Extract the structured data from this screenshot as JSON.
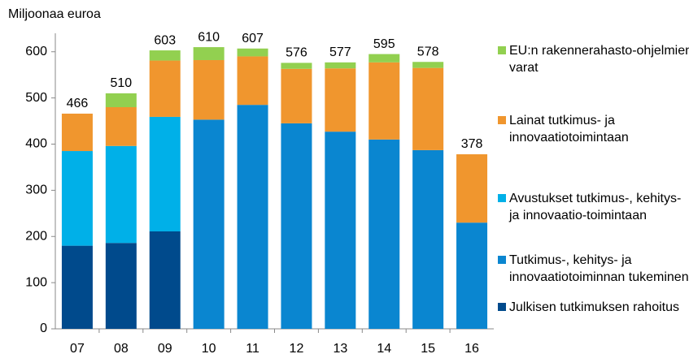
{
  "chart_data": {
    "type": "stacked_bar",
    "ylabel": "Miljoonaa euroa",
    "categories": [
      "07",
      "08",
      "09",
      "10",
      "11",
      "12",
      "13",
      "14",
      "15",
      "16"
    ],
    "series": [
      {
        "name": "Julkisen tutkimuksen rahoitus",
        "color": "#004a8c",
        "values": [
          180,
          186,
          211,
          null,
          null,
          null,
          null,
          null,
          null,
          null
        ]
      },
      {
        "name": "Tutkimus-, kehitys- ja innovaatiotoiminnan tukeminen",
        "color": "#0a86d0",
        "values": [
          null,
          null,
          null,
          453,
          485,
          445,
          427,
          410,
          387,
          230
        ]
      },
      {
        "name": "Avustukset tutkimus-, kehitys- ja innovaatio-toimintaan",
        "color": "#00b0e8",
        "values": [
          205,
          210,
          248,
          null,
          null,
          null,
          null,
          null,
          null,
          null
        ]
      },
      {
        "name": "Lainat tutkimus- ja innovaatiotoimintaan",
        "color": "#f0962e",
        "values": [
          81,
          84,
          122,
          129,
          105,
          118,
          137,
          167,
          178,
          148
        ]
      },
      {
        "name": "EU:n rakennerahasto-ohjelmien varat",
        "color": "#92d050",
        "values": [
          null,
          30,
          22,
          28,
          17,
          13,
          13,
          18,
          13,
          null
        ]
      }
    ],
    "totals": [
      466,
      510,
      603,
      610,
      607,
      576,
      577,
      595,
      578,
      378
    ],
    "ylim": [
      0,
      640
    ],
    "yticks": [
      0,
      100,
      200,
      300,
      400,
      500,
      600
    ],
    "grid": false,
    "legend": "right"
  }
}
